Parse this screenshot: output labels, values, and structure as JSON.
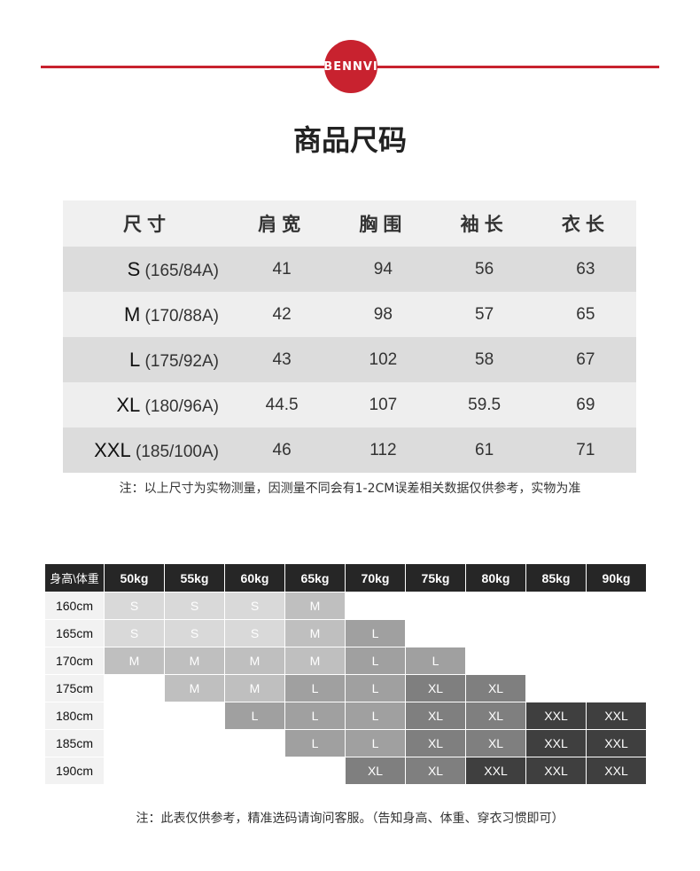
{
  "brand": "BENNVI",
  "title": "商品尺码",
  "size_table": {
    "headers": [
      "尺寸",
      "肩宽",
      "胸围",
      "袖长",
      "衣长"
    ],
    "rows": [
      {
        "size": "S",
        "spec": "(165/84A)",
        "values": [
          "41",
          "94",
          "56",
          "63"
        ]
      },
      {
        "size": "M",
        "spec": "(170/88A)",
        "values": [
          "42",
          "98",
          "57",
          "65"
        ]
      },
      {
        "size": "L",
        "spec": "(175/92A)",
        "values": [
          "43",
          "102",
          "58",
          "67"
        ]
      },
      {
        "size": "XL",
        "spec": "(180/96A)",
        "values": [
          "44.5",
          "107",
          "59.5",
          "69"
        ]
      },
      {
        "size": "XXL",
        "spec": "(185/100A)",
        "values": [
          "46",
          "112",
          "61",
          "71"
        ]
      }
    ]
  },
  "note1": "注：以上尺寸为实物测量，因测量不同会有1-2CM误差相关数据仅供参考，实物为准",
  "reco_table": {
    "corner": "身高\\体重",
    "weights": [
      "50kg",
      "55kg",
      "60kg",
      "65kg",
      "70kg",
      "75kg",
      "80kg",
      "85kg",
      "90kg"
    ],
    "rows": [
      {
        "height": "160cm",
        "cells": [
          "S",
          "S",
          "S",
          "M",
          "",
          "",
          "",
          "",
          ""
        ]
      },
      {
        "height": "165cm",
        "cells": [
          "S",
          "S",
          "S",
          "M",
          "L",
          "",
          "",
          "",
          ""
        ]
      },
      {
        "height": "170cm",
        "cells": [
          "M",
          "M",
          "M",
          "M",
          "L",
          "L",
          "",
          "",
          ""
        ]
      },
      {
        "height": "175cm",
        "cells": [
          "",
          "M",
          "M",
          "L",
          "L",
          "XL",
          "XL",
          "",
          ""
        ]
      },
      {
        "height": "180cm",
        "cells": [
          "",
          "",
          "L",
          "L",
          "L",
          "XL",
          "XL",
          "XXL",
          "XXL"
        ]
      },
      {
        "height": "185cm",
        "cells": [
          "",
          "",
          "",
          "L",
          "L",
          "XL",
          "XL",
          "XXL",
          "XXL"
        ]
      },
      {
        "height": "190cm",
        "cells": [
          "",
          "",
          "",
          "",
          "XL",
          "XL",
          "XXL",
          "XXL",
          "XXL"
        ]
      }
    ],
    "colors": {
      "S": "#d9d9d9",
      "M": "#bfbfbf",
      "L": "#a0a0a0",
      "XL": "#7f7f7f",
      "XXL": "#3f3f3f"
    }
  },
  "note2": "注：此表仅供参考，精准选码请询问客服。（告知身高、体重、穿衣习惯即可）",
  "accent": "#c8222f"
}
